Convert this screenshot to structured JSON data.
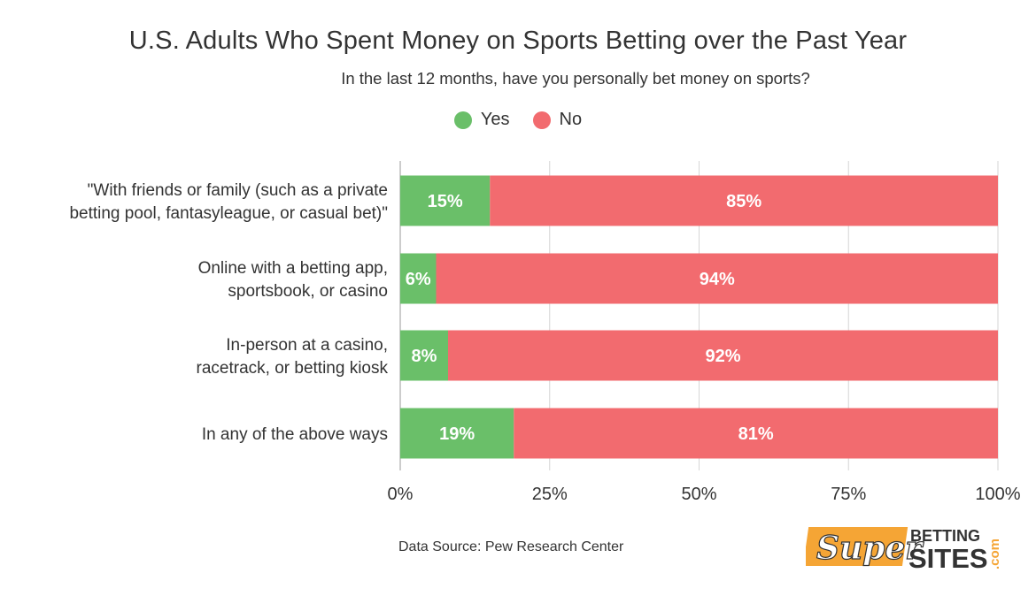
{
  "chart_data": {
    "type": "bar",
    "orientation": "horizontal",
    "stacked": true,
    "title": "U.S. Adults Who Spent Money on Sports Betting over the Past Year",
    "subtitle": "In the last 12 months, have you personally bet money on sports?",
    "categories": [
      [
        "\"With friends or family (such as a private",
        "betting pool, fantasyleague, or casual bet)\""
      ],
      [
        "Online with a betting app,",
        "sportsbook, or casino"
      ],
      [
        "In-person at a casino,",
        "racetrack, or betting kiosk"
      ],
      [
        "In any of the above ways"
      ]
    ],
    "series": [
      {
        "name": "Yes",
        "values": [
          15,
          6,
          8,
          19
        ],
        "labels": [
          "15%",
          "6%",
          "8%",
          "19%"
        ],
        "color": "#6abf69"
      },
      {
        "name": "No",
        "values": [
          85,
          94,
          92,
          81
        ],
        "labels": [
          "85%",
          "94%",
          "92%",
          "81%"
        ],
        "color": "#f26b6f"
      }
    ],
    "xlim": [
      0,
      100
    ],
    "xticks": [
      0,
      25,
      50,
      75,
      100
    ],
    "xtick_labels": [
      "0%",
      "25%",
      "50%",
      "75%",
      "100%"
    ],
    "grid": true,
    "legend_position": "top-center"
  },
  "source": "Data Source: Pew Research Center",
  "logo": {
    "word1": "Super",
    "word2": "BETTING",
    "word3": "SITES",
    "word4": ".com"
  },
  "colors": {
    "yes": "#6abf69",
    "no": "#f26b6f",
    "grid": "#d0d0d0",
    "logo_orange": "#f5a535"
  }
}
